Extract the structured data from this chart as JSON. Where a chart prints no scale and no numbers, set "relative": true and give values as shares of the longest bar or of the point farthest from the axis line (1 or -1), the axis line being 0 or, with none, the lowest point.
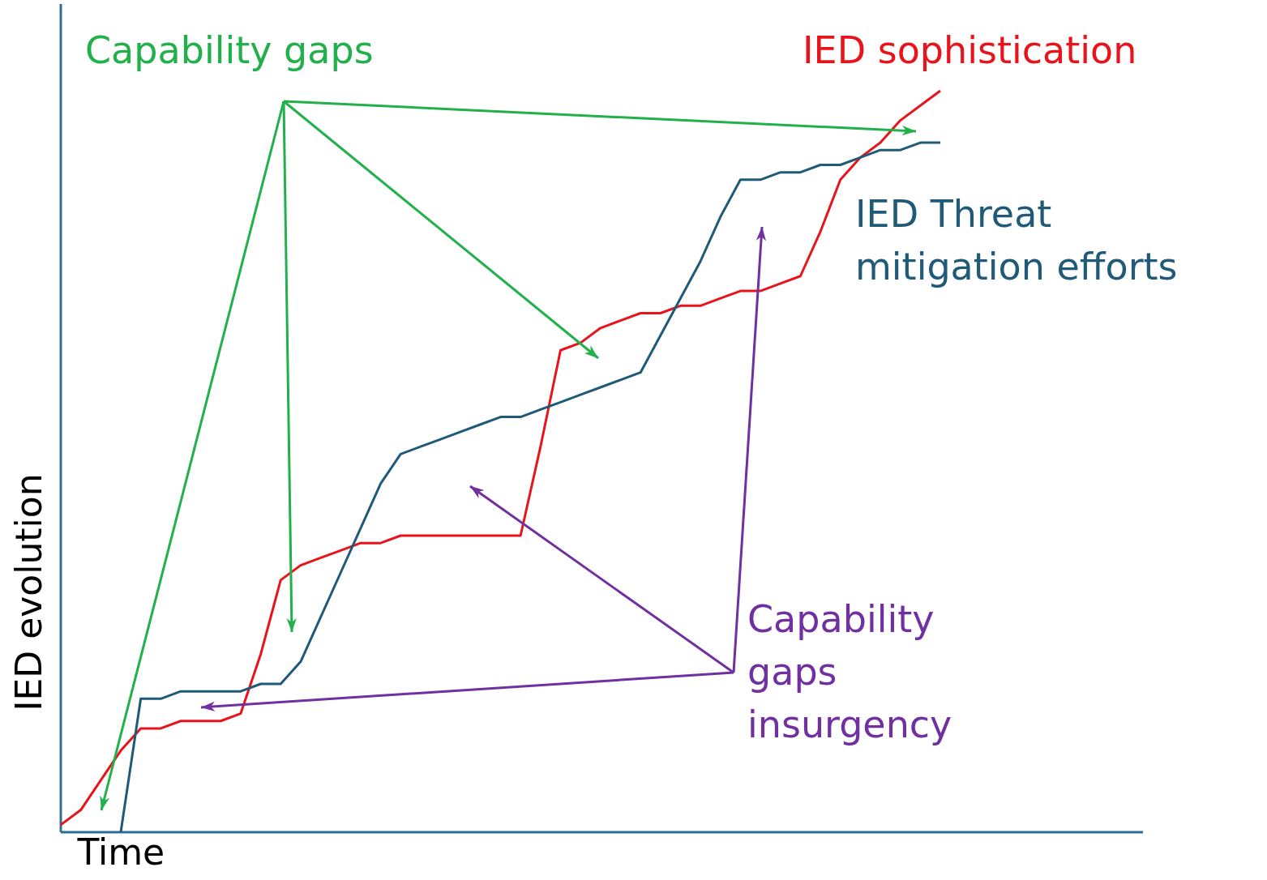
{
  "chart_data": {
    "type": "line",
    "relative": true,
    "xlabel": "Time",
    "ylabel": "IED evolution",
    "grid": false,
    "marker": "none",
    "line_style": "solid",
    "annotations": [
      "Capability gaps",
      "Capability gaps insurgency"
    ],
    "categories": [
      null,
      null,
      null,
      null,
      null,
      null,
      null,
      null,
      null,
      null,
      null,
      null,
      null,
      null,
      null,
      null,
      null,
      null,
      null,
      null,
      null,
      null,
      null,
      null,
      null,
      null,
      null,
      null,
      null,
      null,
      null,
      null,
      null,
      null,
      null,
      null,
      null,
      null,
      null,
      null,
      null,
      null,
      null,
      null,
      null
    ],
    "series": [
      {
        "name": "IED sophistication",
        "color": "#e8141c",
        "values": [
          0.01,
          0.03,
          0.07,
          0.11,
          0.14,
          0.14,
          0.15,
          0.15,
          0.15,
          0.16,
          0.24,
          0.34,
          0.36,
          0.37,
          0.38,
          0.39,
          0.39,
          0.4,
          0.4,
          0.4,
          0.4,
          0.4,
          0.4,
          0.4,
          0.52,
          0.65,
          0.66,
          0.68,
          0.69,
          0.7,
          0.7,
          0.71,
          0.71,
          0.72,
          0.73,
          0.73,
          0.74,
          0.75,
          0.81,
          0.88,
          0.91,
          0.93,
          0.96,
          0.98,
          1
        ]
      },
      {
        "name": "IED Threat mitigation efforts",
        "color": "#1f5a78",
        "values": [
          null,
          null,
          null,
          0,
          0.18,
          0.18,
          0.19,
          0.19,
          0.19,
          0.19,
          0.2,
          0.2,
          0.23,
          0.29,
          0.35,
          0.41,
          0.47,
          0.51,
          0.52,
          0.53,
          0.54,
          0.55,
          0.56,
          0.56,
          0.57,
          0.58,
          0.59,
          0.6,
          0.61,
          0.62,
          0.67,
          0.72,
          0.77,
          0.83,
          0.88,
          0.88,
          0.89,
          0.89,
          0.9,
          0.9,
          0.91,
          0.92,
          0.92,
          0.93,
          0.93
        ]
      }
    ]
  }
}
